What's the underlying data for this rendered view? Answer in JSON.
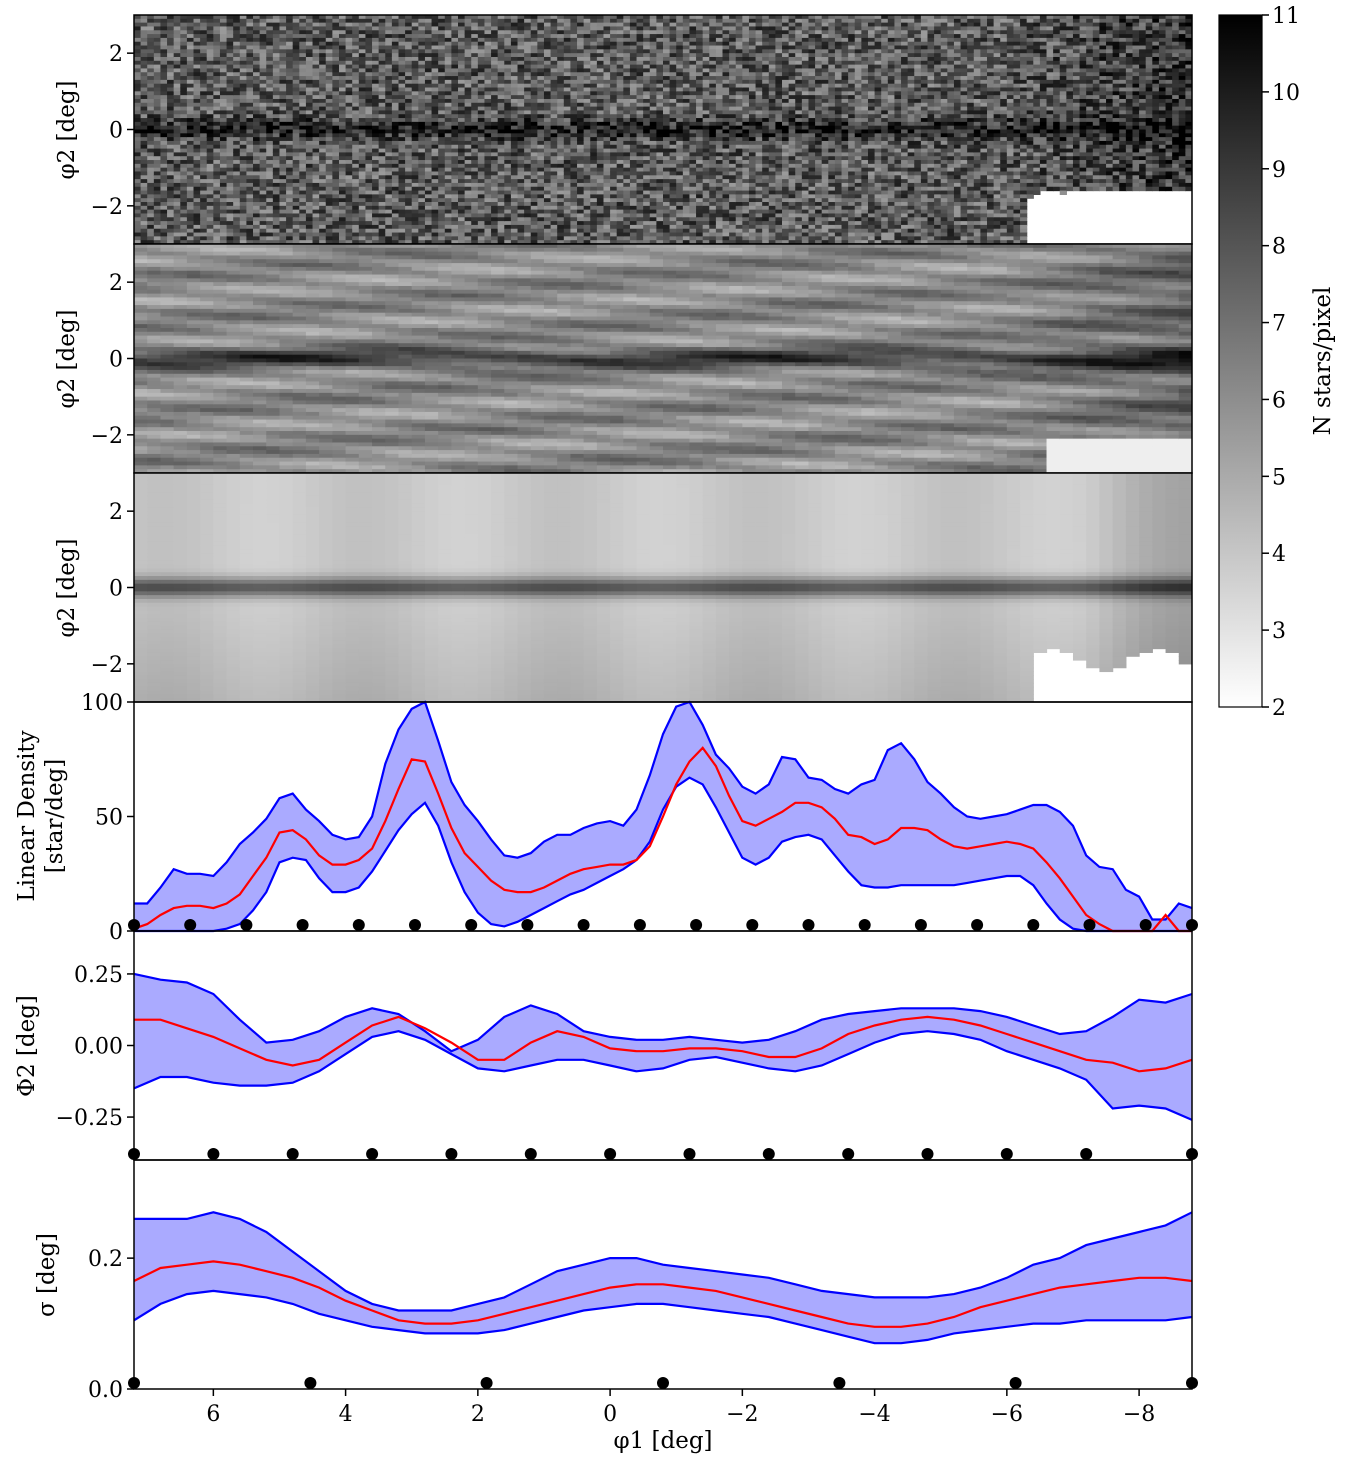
{
  "figure": {
    "colorbar": {
      "label": "N stars/pixel",
      "range": [
        2,
        11
      ],
      "ticks": [
        "2",
        "3",
        "4",
        "5",
        "6",
        "7",
        "8",
        "9",
        "10",
        "11"
      ]
    },
    "x_axis": {
      "label": "φ1 [deg]",
      "range": [
        7.2,
        -8.8
      ],
      "ticks": [
        6,
        4,
        2,
        0,
        -2,
        -4,
        -6,
        -8
      ],
      "tick_labels": [
        "6",
        "4",
        "2",
        "0",
        "−2",
        "−4",
        "−6",
        "−8"
      ]
    },
    "panels": [
      {
        "id": "raw",
        "ylabel": "φ2 [deg]",
        "yrange": [
          -3,
          3
        ],
        "yticks": [
          "2",
          "0",
          "−2"
        ]
      },
      {
        "id": "smooth",
        "ylabel": "φ2 [deg]",
        "yrange": [
          -3,
          3
        ],
        "yticks": [
          "2",
          "0",
          "−2"
        ]
      },
      {
        "id": "model",
        "ylabel": "φ2 [deg]",
        "yrange": [
          -3,
          3
        ],
        "yticks": [
          "2",
          "0",
          "−2"
        ]
      },
      {
        "id": "density",
        "ylabel_line1": "Linear Density",
        "ylabel_line2": "[star/deg]",
        "yrange": [
          0,
          100
        ],
        "yticks": [
          "0",
          "50",
          "100"
        ]
      },
      {
        "id": "track",
        "ylabel": "Φ2 [deg]",
        "yrange": [
          -0.4,
          0.4
        ],
        "yticks": [
          "0.25",
          "0.00",
          "−0.25"
        ]
      },
      {
        "id": "width",
        "ylabel": "σ [deg]",
        "yrange": [
          0,
          0.35
        ],
        "yticks": [
          "0.2",
          "0.0"
        ]
      }
    ]
  },
  "chart_data": [
    {
      "type": "heatmap",
      "panel": "raw",
      "xlabel": "",
      "ylabel": "φ2 [deg]",
      "xlim": [
        7.2,
        -8.8
      ],
      "ylim": [
        -3,
        3
      ],
      "colormap": "gray_r",
      "vmin": 2,
      "vmax": 11,
      "note_empty_region": "lower-right corner (φ1 < -6.3, φ2 < -2) has no data"
    },
    {
      "type": "heatmap",
      "panel": "smooth",
      "xlabel": "",
      "ylabel": "φ2 [deg]",
      "xlim": [
        7.2,
        -8.8
      ],
      "ylim": [
        -3,
        3
      ],
      "colormap": "gray_r",
      "vmin": 2,
      "vmax": 11
    },
    {
      "type": "heatmap",
      "panel": "model",
      "xlabel": "",
      "ylabel": "φ2 [deg]",
      "xlim": [
        7.2,
        -8.8
      ],
      "ylim": [
        -3,
        3
      ],
      "colormap": "gray_r",
      "vmin": 2,
      "vmax": 11,
      "stream_track_phi2": 0.0
    },
    {
      "type": "area",
      "panel": "density",
      "ylabel": "Linear Density [star/deg]",
      "xlim": [
        7.2,
        -8.8
      ],
      "ylim": [
        0,
        100
      ],
      "x": [
        7.2,
        7.0,
        6.8,
        6.6,
        6.4,
        6.2,
        6.0,
        5.8,
        5.6,
        5.4,
        5.2,
        5.0,
        4.8,
        4.6,
        4.4,
        4.2,
        4.0,
        3.8,
        3.6,
        3.4,
        3.2,
        3.0,
        2.8,
        2.6,
        2.4,
        2.2,
        2.0,
        1.8,
        1.6,
        1.4,
        1.2,
        1.0,
        0.8,
        0.6,
        0.4,
        0.2,
        0.0,
        -0.2,
        -0.4,
        -0.6,
        -0.8,
        -1.0,
        -1.2,
        -1.4,
        -1.6,
        -1.8,
        -2.0,
        -2.2,
        -2.4,
        -2.6,
        -2.8,
        -3.0,
        -3.2,
        -3.4,
        -3.6,
        -3.8,
        -4.0,
        -4.2,
        -4.4,
        -4.6,
        -4.8,
        -5.0,
        -5.2,
        -5.4,
        -5.6,
        -5.8,
        -6.0,
        -6.2,
        -6.4,
        -6.6,
        -6.8,
        -7.0,
        -7.2,
        -7.4,
        -7.6,
        -7.8,
        -8.0,
        -8.2,
        -8.4,
        -8.6,
        -8.8
      ],
      "series": [
        {
          "name": "",
          "role": "upper",
          "color": "#0000ff",
          "values": [
            12,
            12,
            19,
            27,
            25,
            25,
            24,
            30,
            38,
            43,
            49,
            58,
            60,
            53,
            48,
            42,
            40,
            41,
            50,
            73,
            88,
            97,
            100,
            83,
            65,
            55,
            48,
            40,
            33,
            32,
            34,
            39,
            42,
            42,
            45,
            47,
            48,
            46,
            53,
            68,
            86,
            98,
            100,
            90,
            77,
            71,
            63,
            60,
            64,
            76,
            75,
            67,
            66,
            62,
            60,
            64,
            66,
            79,
            82,
            75,
            65,
            60,
            54,
            50,
            49,
            50,
            51,
            53,
            55,
            55,
            52,
            46,
            33,
            28,
            27,
            18,
            15,
            5,
            5,
            12,
            10
          ]
        },
        {
          "name": "",
          "role": "median",
          "color": "#ff0000",
          "values": [
            1,
            3,
            7,
            10,
            11,
            11,
            10,
            12,
            16,
            24,
            32,
            43,
            44,
            40,
            33,
            29,
            29,
            31,
            36,
            48,
            62,
            75,
            74,
            60,
            45,
            34,
            28,
            22,
            18,
            17,
            17,
            19,
            22,
            25,
            27,
            28,
            29,
            29,
            31,
            37,
            50,
            64,
            74,
            80,
            72,
            59,
            48,
            46,
            49,
            52,
            56,
            56,
            54,
            49,
            42,
            41,
            38,
            40,
            45,
            45,
            44,
            40,
            37,
            36,
            37,
            38,
            39,
            38,
            36,
            30,
            23,
            15,
            7,
            3,
            0,
            0,
            0,
            0,
            7,
            0,
            0
          ]
        },
        {
          "name": "",
          "role": "lower",
          "color": "#0000ff",
          "values": [
            0,
            0,
            0,
            0,
            0,
            0,
            0,
            1,
            3,
            9,
            17,
            30,
            32,
            31,
            23,
            17,
            17,
            19,
            26,
            35,
            44,
            51,
            56,
            46,
            30,
            17,
            8,
            3,
            2,
            4,
            7,
            10,
            13,
            16,
            18,
            21,
            24,
            27,
            31,
            39,
            53,
            63,
            67,
            64,
            54,
            43,
            32,
            29,
            32,
            39,
            41,
            42,
            40,
            33,
            26,
            20,
            19,
            19,
            20,
            20,
            20,
            20,
            20,
            21,
            22,
            23,
            24,
            24,
            20,
            12,
            5,
            1,
            0,
            0,
            0,
            0,
            0,
            0,
            0,
            0,
            0
          ]
        }
      ],
      "knots_phi1": [
        7.2,
        6.35,
        5.5,
        4.65,
        3.8,
        2.95,
        2.1,
        1.25,
        0.4,
        -0.45,
        -1.3,
        -2.15,
        -3.0,
        -3.85,
        -4.7,
        -5.55,
        -6.4,
        -7.25,
        -8.1,
        -8.8
      ]
    },
    {
      "type": "area",
      "panel": "track",
      "ylabel": "Φ2 [deg]",
      "xlim": [
        7.2,
        -8.8
      ],
      "ylim": [
        -0.4,
        0.4
      ],
      "x": [
        7.2,
        6.8,
        6.4,
        6.0,
        5.6,
        5.2,
        4.8,
        4.4,
        4.0,
        3.6,
        3.2,
        2.8,
        2.4,
        2.0,
        1.6,
        1.2,
        0.8,
        0.4,
        0.0,
        -0.4,
        -0.8,
        -1.2,
        -1.6,
        -2.0,
        -2.4,
        -2.8,
        -3.2,
        -3.6,
        -4.0,
        -4.4,
        -4.8,
        -5.2,
        -5.6,
        -6.0,
        -6.4,
        -6.8,
        -7.2,
        -7.6,
        -8.0,
        -8.4,
        -8.8
      ],
      "series": [
        {
          "name": "",
          "role": "upper",
          "color": "#0000ff",
          "values": [
            0.25,
            0.23,
            0.22,
            0.18,
            0.09,
            0.01,
            0.02,
            0.05,
            0.1,
            0.13,
            0.11,
            0.05,
            -0.02,
            0.02,
            0.1,
            0.14,
            0.11,
            0.05,
            0.03,
            0.02,
            0.02,
            0.03,
            0.02,
            0.01,
            0.02,
            0.05,
            0.09,
            0.11,
            0.12,
            0.13,
            0.13,
            0.13,
            0.12,
            0.1,
            0.07,
            0.04,
            0.05,
            0.1,
            0.16,
            0.15,
            0.18
          ]
        },
        {
          "name": "",
          "role": "median",
          "color": "#ff0000",
          "values": [
            0.09,
            0.09,
            0.06,
            0.03,
            -0.01,
            -0.05,
            -0.07,
            -0.05,
            0.01,
            0.07,
            0.1,
            0.06,
            0.01,
            -0.05,
            -0.05,
            0.01,
            0.05,
            0.03,
            -0.01,
            -0.02,
            -0.02,
            -0.01,
            -0.01,
            -0.02,
            -0.04,
            -0.04,
            -0.01,
            0.04,
            0.07,
            0.09,
            0.1,
            0.09,
            0.07,
            0.04,
            0.01,
            -0.02,
            -0.05,
            -0.06,
            -0.09,
            -0.08,
            -0.05
          ]
        },
        {
          "name": "",
          "role": "lower",
          "color": "#0000ff",
          "values": [
            -0.15,
            -0.11,
            -0.11,
            -0.13,
            -0.14,
            -0.14,
            -0.13,
            -0.09,
            -0.03,
            0.03,
            0.05,
            0.02,
            -0.03,
            -0.08,
            -0.09,
            -0.07,
            -0.05,
            -0.05,
            -0.07,
            -0.09,
            -0.08,
            -0.05,
            -0.04,
            -0.06,
            -0.08,
            -0.09,
            -0.07,
            -0.03,
            0.01,
            0.04,
            0.05,
            0.04,
            0.02,
            -0.02,
            -0.05,
            -0.08,
            -0.12,
            -0.22,
            -0.21,
            -0.22,
            -0.26
          ]
        }
      ],
      "knots_phi1": [
        7.2,
        6.0,
        4.8,
        3.6,
        2.4,
        1.2,
        0.0,
        -1.2,
        -2.4,
        -3.6,
        -4.8,
        -6.0,
        -7.2,
        -8.8
      ]
    },
    {
      "type": "area",
      "panel": "width",
      "ylabel": "σ [deg]",
      "xlim": [
        7.2,
        -8.8
      ],
      "ylim": [
        0,
        0.35
      ],
      "x": [
        7.2,
        6.8,
        6.4,
        6.0,
        5.6,
        5.2,
        4.8,
        4.4,
        4.0,
        3.6,
        3.2,
        2.8,
        2.4,
        2.0,
        1.6,
        1.2,
        0.8,
        0.4,
        0.0,
        -0.4,
        -0.8,
        -1.2,
        -1.6,
        -2.0,
        -2.4,
        -2.8,
        -3.2,
        -3.6,
        -4.0,
        -4.4,
        -4.8,
        -5.2,
        -5.6,
        -6.0,
        -6.4,
        -6.8,
        -7.2,
        -7.6,
        -8.0,
        -8.4,
        -8.8
      ],
      "series": [
        {
          "name": "",
          "role": "upper",
          "color": "#0000ff",
          "values": [
            0.26,
            0.26,
            0.26,
            0.27,
            0.26,
            0.24,
            0.21,
            0.18,
            0.15,
            0.13,
            0.12,
            0.12,
            0.12,
            0.13,
            0.14,
            0.16,
            0.18,
            0.19,
            0.2,
            0.2,
            0.19,
            0.185,
            0.18,
            0.175,
            0.17,
            0.16,
            0.15,
            0.145,
            0.14,
            0.14,
            0.14,
            0.145,
            0.155,
            0.17,
            0.19,
            0.2,
            0.22,
            0.23,
            0.24,
            0.25,
            0.27
          ]
        },
        {
          "name": "",
          "role": "median",
          "color": "#ff0000",
          "values": [
            0.165,
            0.185,
            0.19,
            0.195,
            0.19,
            0.18,
            0.17,
            0.155,
            0.135,
            0.12,
            0.105,
            0.1,
            0.1,
            0.105,
            0.115,
            0.125,
            0.135,
            0.145,
            0.155,
            0.16,
            0.16,
            0.155,
            0.15,
            0.14,
            0.13,
            0.12,
            0.11,
            0.1,
            0.095,
            0.095,
            0.1,
            0.11,
            0.125,
            0.135,
            0.145,
            0.155,
            0.16,
            0.165,
            0.17,
            0.17,
            0.165
          ]
        },
        {
          "name": "",
          "role": "lower",
          "color": "#0000ff",
          "values": [
            0.105,
            0.13,
            0.145,
            0.15,
            0.145,
            0.14,
            0.13,
            0.115,
            0.105,
            0.095,
            0.09,
            0.085,
            0.085,
            0.085,
            0.09,
            0.1,
            0.11,
            0.12,
            0.125,
            0.13,
            0.13,
            0.125,
            0.12,
            0.115,
            0.11,
            0.1,
            0.09,
            0.08,
            0.07,
            0.07,
            0.075,
            0.085,
            0.09,
            0.095,
            0.1,
            0.1,
            0.105,
            0.105,
            0.105,
            0.105,
            0.11
          ]
        }
      ],
      "knots_phi1": [
        7.2,
        4.533,
        1.867,
        -0.8,
        -3.467,
        -6.133,
        -8.8
      ]
    }
  ]
}
